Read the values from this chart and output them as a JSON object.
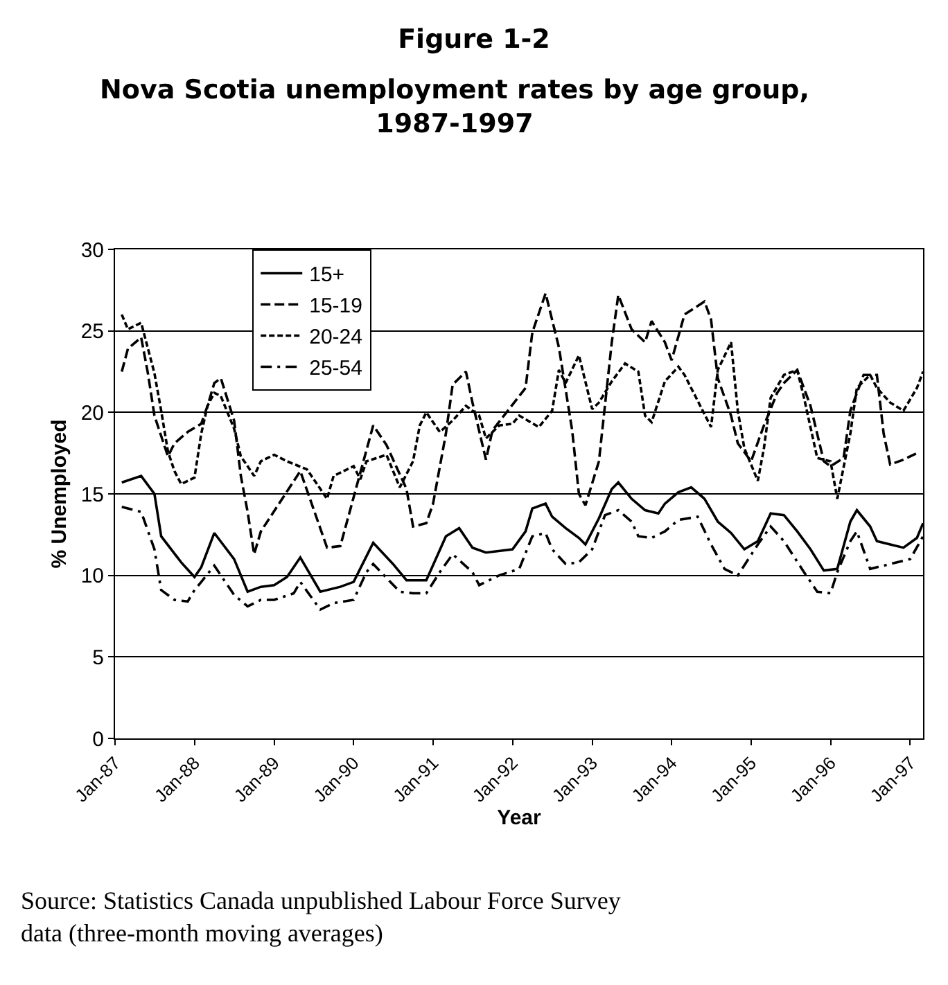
{
  "chart_data": {
    "type": "line",
    "title": "Figure 1-2",
    "subtitle": "Nova Scotia unemployment rates by age group, 1987-1997",
    "xlabel": "Year",
    "ylabel": "% Unemployed",
    "annotations": [
      "Source: Statistics Canada unpublished Labour Force Survey data (three-month moving averages)"
    ],
    "xlim": [
      "1987-01",
      "1997-03"
    ],
    "xticks": [
      {
        "value": "1987-01",
        "label": "Jan-87"
      },
      {
        "value": "1988-01",
        "label": "Jan-88"
      },
      {
        "value": "1989-01",
        "label": "Jan-89"
      },
      {
        "value": "1990-01",
        "label": "Jan-90"
      },
      {
        "value": "1991-01",
        "label": "Jan-91"
      },
      {
        "value": "1992-01",
        "label": "Jan-92"
      },
      {
        "value": "1993-01",
        "label": "Jan-93"
      },
      {
        "value": "1994-01",
        "label": "Jan-94"
      },
      {
        "value": "1995-01",
        "label": "Jan-95"
      },
      {
        "value": "1996-01",
        "label": "Jan-96"
      },
      {
        "value": "1997-01",
        "label": "Jan-97"
      }
    ],
    "ylim": [
      0,
      30
    ],
    "yticks": [
      0,
      5,
      10,
      15,
      20,
      25,
      30
    ],
    "grid": "y",
    "legend": "top left",
    "marker": "none",
    "series": [
      {
        "name": "15+",
        "color": "#000000",
        "line_style": "solid",
        "x": [
          "1987-02",
          "1987-05",
          "1987-07",
          "1987-08",
          "1987-11",
          "1988-01",
          "1988-02",
          "1988-04",
          "1988-07",
          "1988-09",
          "1988-11",
          "1989-01",
          "1989-03",
          "1989-05",
          "1989-08",
          "1989-11",
          "1990-01",
          "1990-04",
          "1990-07",
          "1990-09",
          "1990-12",
          "1991-03",
          "1991-05",
          "1991-07",
          "1991-09",
          "1992-01",
          "1992-03",
          "1992-04",
          "1992-06",
          "1992-07",
          "1992-09",
          "1992-11",
          "1992-12",
          "1993-02",
          "1993-04",
          "1993-05",
          "1993-07",
          "1993-09",
          "1993-11",
          "1993-12",
          "1994-02",
          "1994-04",
          "1994-06",
          "1994-08",
          "1994-10",
          "1994-12",
          "1995-02",
          "1995-04",
          "1995-06",
          "1995-08",
          "1995-10",
          "1995-12",
          "1996-02",
          "1996-04",
          "1996-05",
          "1996-07",
          "1996-08",
          "1996-10",
          "1996-12",
          "1997-02",
          "1997-03"
        ],
        "values": [
          15.7,
          16.1,
          15.0,
          12.4,
          10.8,
          9.9,
          10.5,
          12.6,
          11.0,
          9.0,
          9.3,
          9.4,
          9.9,
          11.1,
          9.0,
          9.3,
          9.6,
          12.0,
          10.7,
          9.7,
          9.7,
          12.4,
          12.9,
          11.7,
          11.4,
          11.6,
          12.7,
          14.1,
          14.4,
          13.6,
          12.9,
          12.3,
          11.9,
          13.5,
          15.3,
          15.7,
          14.7,
          14.0,
          13.8,
          14.4,
          15.1,
          15.4,
          14.7,
          13.3,
          12.6,
          11.6,
          12.1,
          13.8,
          13.7,
          12.7,
          11.6,
          10.3,
          10.4,
          13.3,
          14.0,
          13.0,
          12.1,
          11.9,
          11.7,
          12.3,
          13.2
        ]
      },
      {
        "name": "15-19",
        "color": "#000000",
        "line_style": "dashed",
        "x": [
          "1987-02",
          "1987-03",
          "1987-05",
          "1987-06",
          "1987-07",
          "1987-09",
          "1987-10",
          "1987-12",
          "1988-02",
          "1988-03",
          "1988-04",
          "1988-05",
          "1988-07",
          "1988-08",
          "1988-09",
          "1988-10",
          "1988-11",
          "1989-05",
          "1989-09",
          "1989-11",
          "1990-04",
          "1990-06",
          "1990-09",
          "1990-10",
          "1990-12",
          "1991-01",
          "1991-03",
          "1991-04",
          "1991-06",
          "1991-07",
          "1991-09",
          "1991-10",
          "1992-03",
          "1992-04",
          "1992-06",
          "1992-08",
          "1992-10",
          "1992-11",
          "1992-12",
          "1993-02",
          "1993-04",
          "1993-05",
          "1993-07",
          "1993-09",
          "1993-10",
          "1993-12",
          "1994-01",
          "1994-03",
          "1994-06",
          "1994-07",
          "1994-08",
          "1994-10",
          "1994-11",
          "1995-01",
          "1995-03",
          "1995-05",
          "1995-06",
          "1995-08",
          "1995-10",
          "1995-12",
          "1996-01",
          "1996-03",
          "1996-04",
          "1996-06",
          "1996-08",
          "1996-09",
          "1996-10",
          "1996-12",
          "1997-02"
        ],
        "values": [
          22.5,
          23.9,
          24.6,
          22.4,
          19.8,
          17.3,
          18.1,
          18.8,
          19.3,
          20.4,
          21.8,
          22.1,
          19.5,
          16.1,
          13.9,
          11.3,
          12.7,
          16.4,
          11.7,
          11.8,
          19.2,
          18.0,
          15.3,
          13.0,
          13.2,
          14.4,
          18.7,
          21.7,
          22.5,
          20.6,
          17.1,
          18.9,
          21.5,
          24.9,
          27.3,
          24.0,
          18.9,
          15.0,
          14.3,
          17.0,
          24.3,
          27.2,
          25.1,
          24.3,
          25.6,
          24.3,
          23.2,
          26.0,
          26.8,
          25.7,
          22.1,
          19.8,
          18.1,
          17.0,
          19.2,
          21.2,
          21.8,
          22.6,
          20.4,
          17.0,
          16.7,
          17.2,
          20.1,
          22.3,
          22.3,
          18.7,
          16.8,
          17.1,
          17.5
        ]
      },
      {
        "name": "20-24",
        "color": "#000000",
        "line_style": "dotted",
        "x": [
          "1987-02",
          "1987-03",
          "1987-05",
          "1987-07",
          "1987-08",
          "1987-09",
          "1987-10",
          "1987-11",
          "1988-01",
          "1988-02",
          "1988-03",
          "1988-04",
          "1988-05",
          "1988-07",
          "1988-08",
          "1988-09",
          "1988-10",
          "1988-11",
          "1989-01",
          "1989-03",
          "1989-06",
          "1989-09",
          "1989-10",
          "1990-01",
          "1990-02",
          "1990-03",
          "1990-06",
          "1990-08",
          "1990-10",
          "1990-11",
          "1990-12",
          "1991-02",
          "1991-04",
          "1991-06",
          "1991-08",
          "1991-09",
          "1991-11",
          "1992-01",
          "1992-02",
          "1992-05",
          "1992-07",
          "1992-08",
          "1992-09",
          "1992-11",
          "1993-01",
          "1993-02",
          "1993-04",
          "1993-06",
          "1993-08",
          "1993-09",
          "1993-10",
          "1993-12",
          "1994-02",
          "1994-03",
          "1994-07",
          "1994-08",
          "1994-10",
          "1994-11",
          "1994-12",
          "1995-02",
          "1995-03",
          "1995-04",
          "1995-06",
          "1995-08",
          "1995-09",
          "1995-11",
          "1996-01",
          "1996-02",
          "1996-04",
          "1996-05",
          "1996-07",
          "1996-08",
          "1996-10",
          "1996-12",
          "1997-02",
          "1997-03"
        ],
        "values": [
          26.0,
          25.1,
          25.5,
          22.4,
          20.1,
          17.6,
          16.4,
          15.6,
          16.0,
          18.7,
          20.4,
          21.2,
          21.0,
          19.0,
          17.3,
          16.7,
          16.1,
          17.0,
          17.4,
          17.0,
          16.5,
          14.7,
          16.1,
          16.7,
          15.9,
          17.0,
          17.4,
          15.4,
          17.0,
          19.2,
          20.0,
          18.8,
          19.5,
          20.4,
          19.8,
          18.4,
          19.2,
          19.3,
          19.8,
          19.1,
          20.1,
          22.6,
          21.8,
          23.5,
          20.2,
          20.6,
          21.9,
          23.0,
          22.5,
          19.8,
          19.4,
          21.9,
          22.8,
          22.3,
          19.1,
          22.6,
          24.3,
          20.1,
          17.8,
          15.8,
          17.8,
          20.9,
          22.3,
          22.6,
          20.9,
          17.2,
          17.0,
          14.7,
          18.7,
          21.5,
          22.3,
          21.5,
          20.6,
          20.1,
          21.5,
          22.5
        ]
      },
      {
        "name": "25-54",
        "color": "#000000",
        "line_style": "dashdot",
        "x": [
          "1987-02",
          "1987-04",
          "1987-05",
          "1987-07",
          "1987-08",
          "1987-10",
          "1987-12",
          "1988-01",
          "1988-02",
          "1988-04",
          "1988-07",
          "1988-09",
          "1988-11",
          "1989-01",
          "1989-04",
          "1989-05",
          "1989-08",
          "1989-10",
          "1990-01",
          "1990-03",
          "1990-04",
          "1990-08",
          "1990-10",
          "1990-12",
          "1991-02",
          "1991-04",
          "1991-07",
          "1991-08",
          "1991-11",
          "1992-02",
          "1992-04",
          "1992-06",
          "1992-07",
          "1992-09",
          "1992-11",
          "1993-01",
          "1993-03",
          "1993-05",
          "1993-07",
          "1993-08",
          "1993-10",
          "1993-12",
          "1994-02",
          "1994-05",
          "1994-07",
          "1994-09",
          "1994-11",
          "1995-02",
          "1995-04",
          "1995-06",
          "1995-09",
          "1995-11",
          "1996-01",
          "1996-02",
          "1996-04",
          "1996-05",
          "1996-07",
          "1996-10",
          "1997-01",
          "1997-03"
        ],
        "values": [
          14.2,
          14.0,
          13.9,
          11.6,
          9.1,
          8.5,
          8.4,
          9.1,
          9.6,
          10.6,
          8.8,
          8.1,
          8.5,
          8.5,
          8.9,
          9.6,
          7.9,
          8.3,
          8.5,
          10.2,
          10.7,
          9.0,
          8.9,
          8.9,
          10.2,
          11.3,
          10.2,
          9.4,
          10.0,
          10.4,
          12.4,
          12.6,
          11.6,
          10.7,
          10.8,
          11.6,
          13.7,
          14.0,
          13.3,
          12.4,
          12.3,
          12.7,
          13.4,
          13.6,
          11.9,
          10.4,
          10.0,
          11.9,
          13.0,
          12.1,
          10.2,
          9.0,
          8.9,
          10.2,
          12.1,
          12.7,
          10.4,
          10.7,
          11.0,
          12.4
        ]
      }
    ]
  }
}
